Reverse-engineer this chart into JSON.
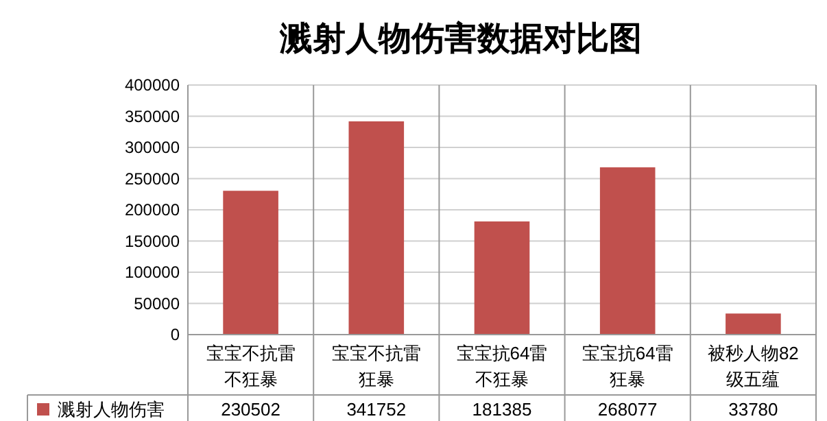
{
  "chart_data": {
    "type": "bar",
    "title": "溅射人物伤害数据对比图",
    "categories": [
      "宝宝不抗雷不狂暴",
      "宝宝不抗雷狂暴",
      "宝宝抗64雷不狂暴",
      "宝宝抗64雷狂暴",
      "被秒人物82级五蕴"
    ],
    "series": [
      {
        "name": "溅射人物伤害",
        "color": "#c0504d",
        "values": [
          230502,
          341752,
          181385,
          268077,
          33780
        ]
      }
    ],
    "ylim": [
      0,
      400000
    ],
    "yticks": [
      0,
      50000,
      100000,
      150000,
      200000,
      250000,
      300000,
      350000,
      400000
    ],
    "grid": "y",
    "data_labels": true,
    "legend": "bottom left"
  }
}
